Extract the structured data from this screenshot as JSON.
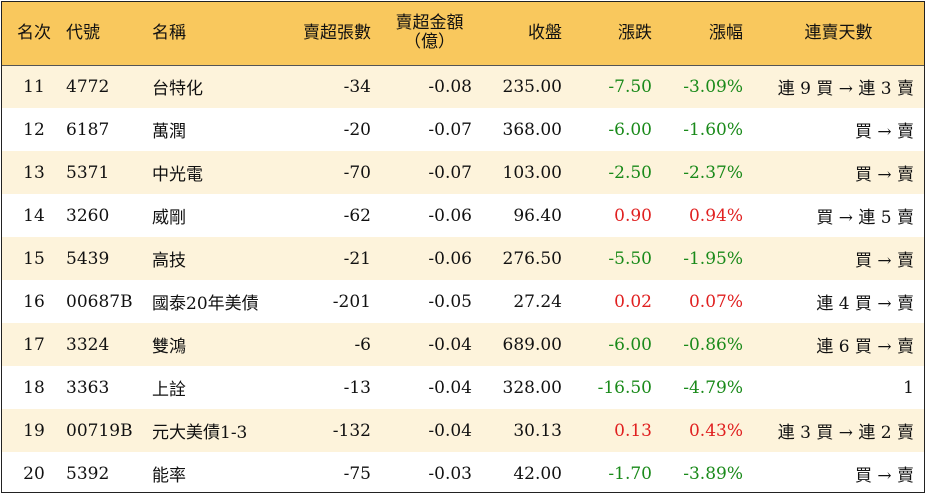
{
  "headers": {
    "rank": "名次",
    "code": "代號",
    "name": "名稱",
    "net_sell_lots": "賣超張數",
    "net_sell_amount_line1": "賣超金額",
    "net_sell_amount_line2": "（億）",
    "close": "收盤",
    "change": "漲跌",
    "pct": "漲幅",
    "streak": "連賣天數"
  },
  "colors": {
    "header_bg": "#f9c85d",
    "stripe_bg": "#fdf3db",
    "down": "#1a8a1a",
    "up": "#e02020"
  },
  "rows": [
    {
      "rank": "11",
      "code": "4772",
      "name": "台特化",
      "lots": "-34",
      "amount": "-0.08",
      "close": "235.00",
      "change": "-7.50",
      "pct": "-3.09%",
      "dir": "down",
      "streak": "連 9 買 → 連 3 賣"
    },
    {
      "rank": "12",
      "code": "6187",
      "name": "萬潤",
      "lots": "-20",
      "amount": "-0.07",
      "close": "368.00",
      "change": "-6.00",
      "pct": "-1.60%",
      "dir": "down",
      "streak": "買 → 賣"
    },
    {
      "rank": "13",
      "code": "5371",
      "name": "中光電",
      "lots": "-70",
      "amount": "-0.07",
      "close": "103.00",
      "change": "-2.50",
      "pct": "-2.37%",
      "dir": "down",
      "streak": "買 → 賣"
    },
    {
      "rank": "14",
      "code": "3260",
      "name": "威剛",
      "lots": "-62",
      "amount": "-0.06",
      "close": "96.40",
      "change": "0.90",
      "pct": "0.94%",
      "dir": "up",
      "streak": "買 → 連 5 賣"
    },
    {
      "rank": "15",
      "code": "5439",
      "name": "高技",
      "lots": "-21",
      "amount": "-0.06",
      "close": "276.50",
      "change": "-5.50",
      "pct": "-1.95%",
      "dir": "down",
      "streak": "買 → 賣"
    },
    {
      "rank": "16",
      "code": "00687B",
      "name": "國泰20年美債",
      "lots": "-201",
      "amount": "-0.05",
      "close": "27.24",
      "change": "0.02",
      "pct": "0.07%",
      "dir": "up",
      "streak": "連 4 買 → 賣"
    },
    {
      "rank": "17",
      "code": "3324",
      "name": "雙鴻",
      "lots": "-6",
      "amount": "-0.04",
      "close": "689.00",
      "change": "-6.00",
      "pct": "-0.86%",
      "dir": "down",
      "streak": "連 6 買 → 賣"
    },
    {
      "rank": "18",
      "code": "3363",
      "name": "上詮",
      "lots": "-13",
      "amount": "-0.04",
      "close": "328.00",
      "change": "-16.50",
      "pct": "-4.79%",
      "dir": "down",
      "streak": "1"
    },
    {
      "rank": "19",
      "code": "00719B",
      "name": "元大美債1-3",
      "lots": "-132",
      "amount": "-0.04",
      "close": "30.13",
      "change": "0.13",
      "pct": "0.43%",
      "dir": "up",
      "streak": "連 3 買 → 連 2 賣"
    },
    {
      "rank": "20",
      "code": "5392",
      "name": "能率",
      "lots": "-75",
      "amount": "-0.03",
      "close": "42.00",
      "change": "-1.70",
      "pct": "-3.89%",
      "dir": "down",
      "streak": "買 → 賣"
    }
  ]
}
